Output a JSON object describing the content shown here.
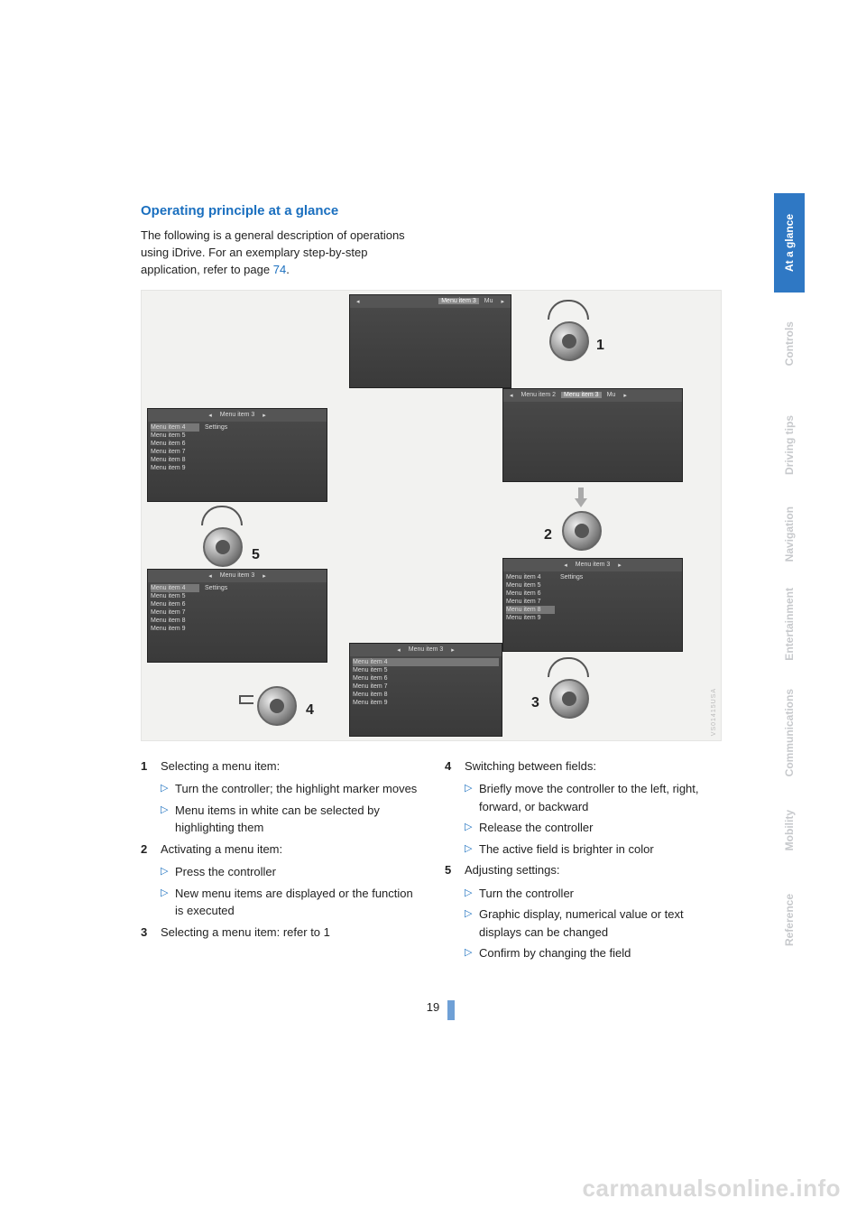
{
  "heading": "Operating principle at a glance",
  "intro_pre": "The following is a general description of operations using iDrive. For an exemplary step-by-step application, refer to page ",
  "intro_link": "74",
  "intro_post": ".",
  "page_number": "19",
  "watermark": "carmanualsonline.info",
  "image_code": "VS01415USA",
  "colors": {
    "accent": "#1a6fbf",
    "tab_active_bg": "#2f78c4",
    "tab_active_fg": "#ffffff",
    "tab_inactive_fg": "#c7c9cc",
    "pgmark": "#6fa0d6",
    "watermark": "#d9d9d9"
  },
  "tabs": [
    {
      "label": "At a glance",
      "active": true
    },
    {
      "label": "Controls",
      "active": false
    },
    {
      "label": "Driving tips",
      "active": false
    },
    {
      "label": "Navigation",
      "active": false
    },
    {
      "label": "Entertainment",
      "active": false
    },
    {
      "label": "Communications",
      "active": false
    },
    {
      "label": "Mobility",
      "active": false
    },
    {
      "label": "Reference",
      "active": false
    }
  ],
  "left_items": [
    {
      "num": "1",
      "title": "Selecting a menu item:",
      "subs": [
        "Turn the controller; the highlight marker moves",
        "Menu items in white can be selected by highlighting them"
      ]
    },
    {
      "num": "2",
      "title": "Activating a menu item:",
      "subs": [
        "Press the controller",
        "New menu items are displayed or the function is executed"
      ]
    },
    {
      "num": "3",
      "title": "Selecting a menu item: refer to 1",
      "subs": []
    }
  ],
  "right_items": [
    {
      "num": "4",
      "title": "Switching between fields:",
      "subs": [
        "Briefly move the controller to the left, right, forward, or backward",
        "Release the controller",
        "The active field is brighter in color"
      ]
    },
    {
      "num": "5",
      "title": "Adjusting settings:",
      "subs": [
        "Turn the controller",
        "Graphic display, numerical value or text displays can be changed",
        "Confirm by changing the field"
      ]
    }
  ],
  "diagram": {
    "labels": {
      "n1": "1",
      "n2": "2",
      "n3": "3",
      "n4": "4",
      "n5": "5"
    },
    "menu_bar_texts": {
      "mi2": "Menu item 2",
      "mi3": "Menu item 3",
      "mu": "Mu",
      "settings": "Settings"
    },
    "side_items": [
      "Menu item 4",
      "Menu item 5",
      "Menu item 6",
      "Menu item 7",
      "Menu item 8",
      "Menu item 9"
    ]
  }
}
